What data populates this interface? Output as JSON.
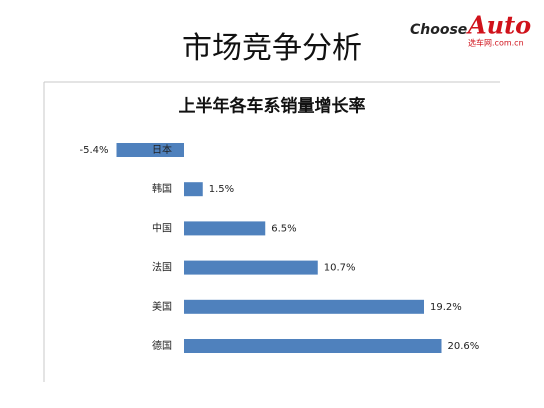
{
  "header": {
    "title": "市场竞争分析",
    "logo": {
      "brand_1": "Choose",
      "brand_2": "Auto",
      "site": "选车网.com.cn"
    }
  },
  "chart_data": {
    "type": "bar",
    "orientation": "horizontal",
    "title": "上半年各车系销量增长率",
    "categories": [
      "日本",
      "韩国",
      "中国",
      "法国",
      "美国",
      "德国"
    ],
    "values": [
      -5.4,
      1.5,
      6.5,
      10.7,
      19.2,
      20.6
    ],
    "value_labels": [
      "-5.4%",
      "1.5%",
      "6.5%",
      "10.7%",
      "19.2%",
      "20.6%"
    ],
    "color": "#4f81bd"
  }
}
